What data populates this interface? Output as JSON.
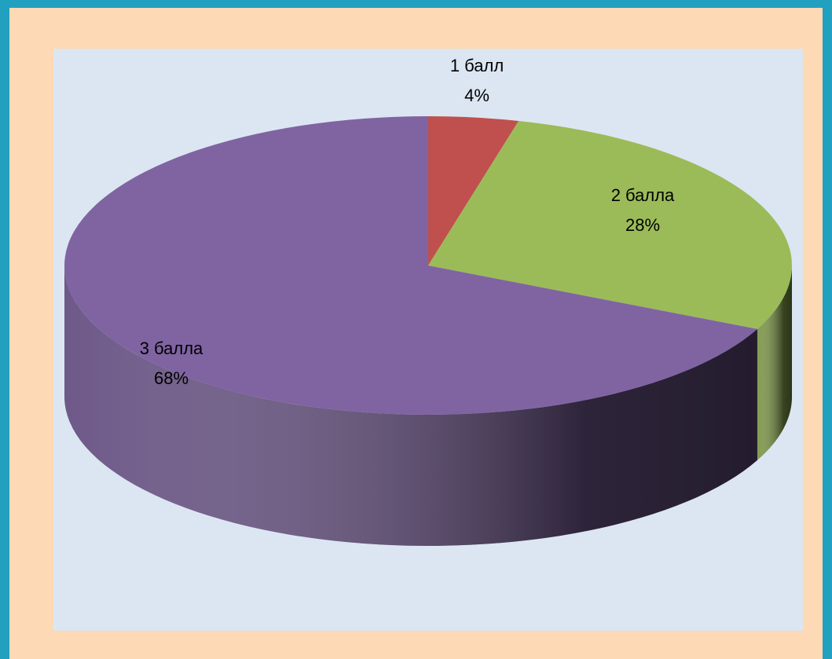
{
  "chart_data": {
    "type": "pie",
    "categories": [
      "1 балл",
      "2 балла",
      "3 балла"
    ],
    "values": [
      4,
      28,
      68
    ],
    "value_labels": [
      "4%",
      "28%",
      "68%"
    ],
    "colors": [
      "#c0504d",
      "#9bbb59",
      "#8064a2"
    ]
  }
}
